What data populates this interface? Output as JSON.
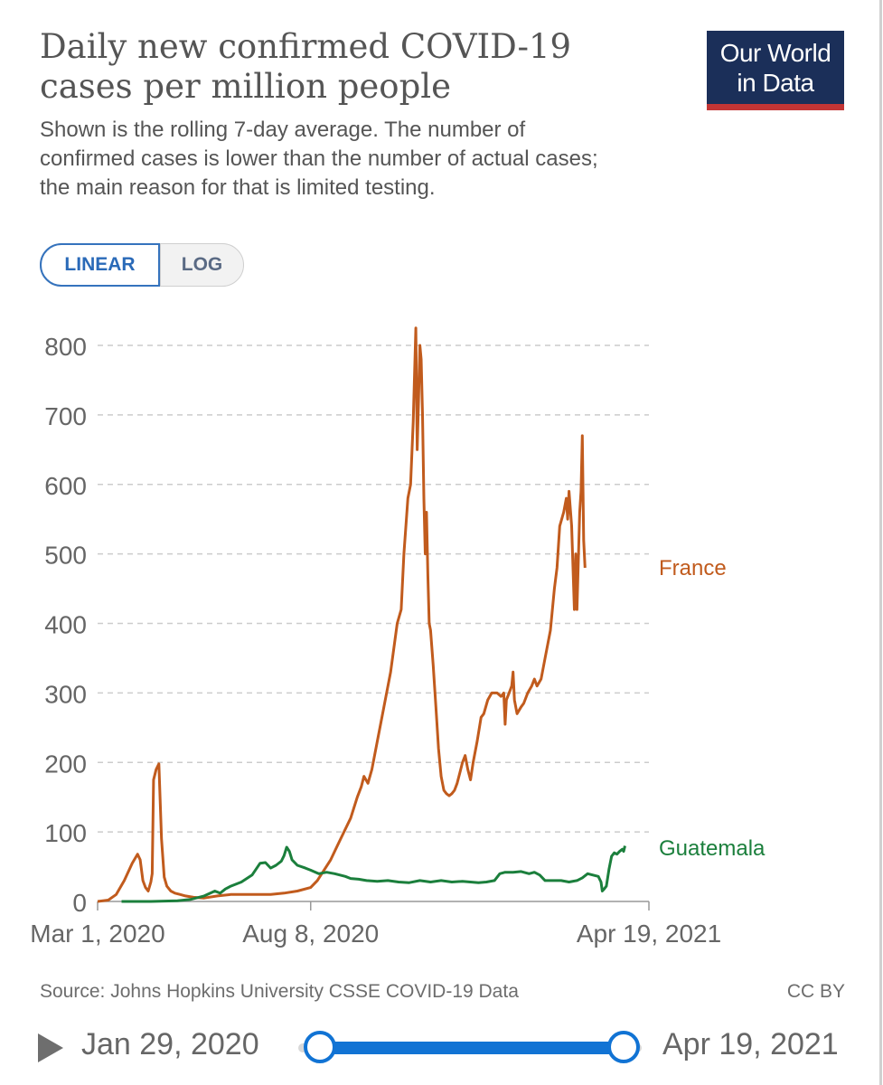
{
  "header": {
    "title": "Daily new confirmed COVID-19 cases per million people",
    "subtitle": "Shown is the rolling 7-day average. The number of confirmed cases is lower than the number of actual cases; the main reason for that is limited testing.",
    "logo_line1": "Our World",
    "logo_line2": "in Data"
  },
  "controls": {
    "linear_label": "LINEAR",
    "log_label": "LOG",
    "selected": "LINEAR"
  },
  "colors": {
    "france": "#c15b1d",
    "guatemala": "#1b7f3c",
    "grid": "#cccccc",
    "axis_text": "#666666",
    "slider": "#1173d4",
    "logo_bg": "#1b2f59",
    "logo_accent": "#c33535"
  },
  "footer": {
    "source": "Source: Johns Hopkins University CSSE COVID-19 Data",
    "license": "CC BY"
  },
  "timeline": {
    "start_label": "Jan 29, 2020",
    "end_label": "Apr 19, 2021",
    "play_icon": "play-icon"
  },
  "chart_data": {
    "type": "line",
    "title": "Daily new confirmed COVID-19 cases per million people",
    "xlabel": "",
    "ylabel": "",
    "ylim": [
      0,
      800
    ],
    "yticks": [
      0,
      100,
      200,
      300,
      400,
      500,
      600,
      700,
      800
    ],
    "x_ticks": [
      {
        "day": 0,
        "label": "Mar 1, 2020"
      },
      {
        "day": 160,
        "label": "Aug 8, 2020"
      },
      {
        "day": 414,
        "label": "Apr 19, 2021"
      }
    ],
    "x_range_days": [
      0,
      414
    ],
    "series": [
      {
        "name": "France",
        "color": "#c15b1d",
        "points": [
          [
            0,
            0
          ],
          [
            8,
            2
          ],
          [
            14,
            10
          ],
          [
            20,
            30
          ],
          [
            26,
            55
          ],
          [
            30,
            68
          ],
          [
            32,
            60
          ],
          [
            34,
            30
          ],
          [
            36,
            20
          ],
          [
            38,
            15
          ],
          [
            40,
            28
          ],
          [
            41,
            40
          ],
          [
            42,
            175
          ],
          [
            44,
            190
          ],
          [
            46,
            198
          ],
          [
            48,
            90
          ],
          [
            50,
            35
          ],
          [
            52,
            22
          ],
          [
            55,
            15
          ],
          [
            58,
            12
          ],
          [
            62,
            10
          ],
          [
            66,
            8
          ],
          [
            72,
            6
          ],
          [
            80,
            5
          ],
          [
            90,
            8
          ],
          [
            100,
            10
          ],
          [
            110,
            10
          ],
          [
            120,
            10
          ],
          [
            130,
            10
          ],
          [
            140,
            12
          ],
          [
            150,
            15
          ],
          [
            160,
            20
          ],
          [
            165,
            30
          ],
          [
            170,
            45
          ],
          [
            175,
            60
          ],
          [
            180,
            80
          ],
          [
            185,
            100
          ],
          [
            190,
            120
          ],
          [
            195,
            150
          ],
          [
            198,
            165
          ],
          [
            200,
            180
          ],
          [
            203,
            170
          ],
          [
            206,
            190
          ],
          [
            210,
            230
          ],
          [
            215,
            280
          ],
          [
            220,
            330
          ],
          [
            225,
            400
          ],
          [
            228,
            420
          ],
          [
            230,
            500
          ],
          [
            233,
            580
          ],
          [
            235,
            600
          ],
          [
            237,
            690
          ],
          [
            239,
            825
          ],
          [
            240,
            650
          ],
          [
            241,
            720
          ],
          [
            242,
            800
          ],
          [
            243,
            780
          ],
          [
            244,
            700
          ],
          [
            245,
            580
          ],
          [
            246,
            500
          ],
          [
            247,
            560
          ],
          [
            248,
            470
          ],
          [
            249,
            400
          ],
          [
            250,
            390
          ],
          [
            252,
            340
          ],
          [
            254,
            280
          ],
          [
            256,
            220
          ],
          [
            258,
            180
          ],
          [
            260,
            160
          ],
          [
            262,
            155
          ],
          [
            264,
            152
          ],
          [
            266,
            155
          ],
          [
            268,
            160
          ],
          [
            270,
            170
          ],
          [
            272,
            185
          ],
          [
            274,
            200
          ],
          [
            276,
            210
          ],
          [
            278,
            190
          ],
          [
            280,
            175
          ],
          [
            282,
            200
          ],
          [
            285,
            230
          ],
          [
            288,
            265
          ],
          [
            290,
            270
          ],
          [
            293,
            290
          ],
          [
            296,
            300
          ],
          [
            300,
            300
          ],
          [
            303,
            295
          ],
          [
            305,
            300
          ],
          [
            306,
            255
          ],
          [
            307,
            290
          ],
          [
            309,
            300
          ],
          [
            311,
            310
          ],
          [
            312,
            330
          ],
          [
            313,
            290
          ],
          [
            315,
            270
          ],
          [
            318,
            280
          ],
          [
            320,
            285
          ],
          [
            323,
            300
          ],
          [
            326,
            310
          ],
          [
            328,
            320
          ],
          [
            330,
            310
          ],
          [
            333,
            320
          ],
          [
            336,
            350
          ],
          [
            340,
            390
          ],
          [
            343,
            450
          ],
          [
            345,
            480
          ],
          [
            347,
            540
          ],
          [
            350,
            560
          ],
          [
            352,
            580
          ],
          [
            353,
            550
          ],
          [
            354,
            590
          ],
          [
            356,
            540
          ],
          [
            358,
            420
          ],
          [
            359,
            500
          ],
          [
            360,
            420
          ],
          [
            362,
            560
          ],
          [
            363,
            590
          ],
          [
            364,
            670
          ],
          [
            365,
            520
          ],
          [
            366,
            480
          ]
        ]
      },
      {
        "name": "Guatemala",
        "color": "#1b7f3c",
        "points": [
          [
            18,
            0
          ],
          [
            40,
            0
          ],
          [
            60,
            1
          ],
          [
            70,
            3
          ],
          [
            80,
            8
          ],
          [
            88,
            15
          ],
          [
            92,
            12
          ],
          [
            96,
            18
          ],
          [
            100,
            22
          ],
          [
            108,
            28
          ],
          [
            116,
            38
          ],
          [
            122,
            55
          ],
          [
            126,
            56
          ],
          [
            130,
            48
          ],
          [
            134,
            52
          ],
          [
            138,
            58
          ],
          [
            140,
            66
          ],
          [
            142,
            78
          ],
          [
            144,
            72
          ],
          [
            146,
            60
          ],
          [
            150,
            52
          ],
          [
            156,
            48
          ],
          [
            160,
            45
          ],
          [
            166,
            40
          ],
          [
            172,
            42
          ],
          [
            178,
            40
          ],
          [
            182,
            38
          ],
          [
            186,
            36
          ],
          [
            190,
            33
          ],
          [
            196,
            32
          ],
          [
            202,
            30
          ],
          [
            210,
            29
          ],
          [
            218,
            30
          ],
          [
            226,
            28
          ],
          [
            234,
            27
          ],
          [
            242,
            30
          ],
          [
            250,
            28
          ],
          [
            258,
            30
          ],
          [
            266,
            28
          ],
          [
            274,
            29
          ],
          [
            280,
            28
          ],
          [
            286,
            27
          ],
          [
            292,
            28
          ],
          [
            298,
            30
          ],
          [
            302,
            40
          ],
          [
            306,
            42
          ],
          [
            312,
            42
          ],
          [
            318,
            43
          ],
          [
            324,
            40
          ],
          [
            328,
            42
          ],
          [
            332,
            38
          ],
          [
            336,
            30
          ],
          [
            342,
            30
          ],
          [
            348,
            30
          ],
          [
            354,
            28
          ],
          [
            360,
            30
          ],
          [
            364,
            34
          ],
          [
            368,
            40
          ],
          [
            372,
            38
          ],
          [
            376,
            36
          ],
          [
            378,
            28
          ],
          [
            379,
            15
          ],
          [
            380,
            17
          ],
          [
            382,
            22
          ],
          [
            384,
            46
          ],
          [
            386,
            65
          ],
          [
            388,
            70
          ],
          [
            390,
            68
          ],
          [
            392,
            72
          ],
          [
            394,
            75
          ],
          [
            395,
            72
          ],
          [
            396,
            80
          ]
        ]
      }
    ],
    "legend": [
      {
        "name": "France",
        "placement": "right-end"
      },
      {
        "name": "Guatemala",
        "placement": "right-end"
      }
    ]
  }
}
